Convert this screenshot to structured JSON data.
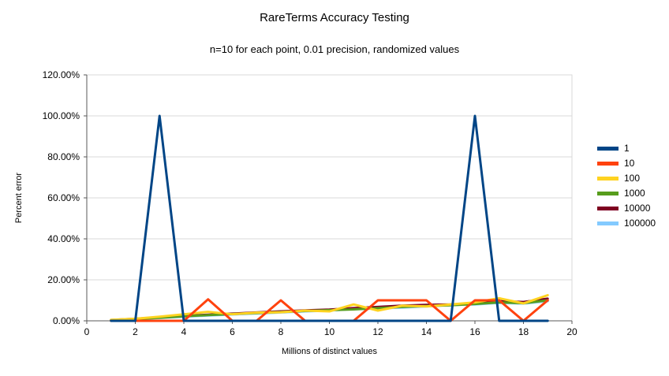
{
  "chart_data": {
    "type": "line",
    "title": "RareTerms Accuracy Testing",
    "subtitle": "n=10 for each point, 0.01 precision, randomized values",
    "xlabel": "Millions of distinct values",
    "ylabel": "Percent error",
    "xlim": [
      0,
      20
    ],
    "ylim": [
      0,
      120
    ],
    "grid": true,
    "legend_position": "right",
    "x_ticks": [
      0,
      2,
      4,
      6,
      8,
      10,
      12,
      14,
      16,
      18,
      20
    ],
    "y_tick_values": [
      0,
      20,
      40,
      60,
      80,
      100,
      120
    ],
    "y_tick_labels": [
      "0.00%",
      "20.00%",
      "40.00%",
      "60.00%",
      "80.00%",
      "100.00%",
      "120.00%"
    ],
    "x": [
      1,
      2,
      3,
      4,
      5,
      6,
      7,
      8,
      9,
      10,
      11,
      12,
      13,
      14,
      15,
      16,
      17,
      18,
      19
    ],
    "series": [
      {
        "name": "1",
        "color": "#004586",
        "values": [
          0,
          0,
          100,
          0,
          0,
          0,
          0,
          0,
          0,
          0,
          0,
          0,
          0,
          0,
          0,
          100,
          0,
          0,
          0
        ]
      },
      {
        "name": "10",
        "color": "#ff420e",
        "values": [
          0,
          0,
          0,
          0,
          10.5,
          0,
          0,
          10,
          0,
          0,
          0,
          10,
          10,
          10,
          0,
          10,
          10,
          0,
          10
        ]
      },
      {
        "name": "100",
        "color": "#ffd320",
        "values": [
          0.5,
          1,
          2,
          3.2,
          4.4,
          3.2,
          4,
          4.2,
          5,
          4.6,
          8,
          5,
          7.4,
          7,
          8,
          9,
          11,
          8.5,
          12.5
        ]
      },
      {
        "name": "1000",
        "color": "#579d1c",
        "values": [
          0.3,
          0.9,
          1.5,
          2.2,
          2.8,
          3.3,
          3.8,
          4.3,
          4.8,
          5.2,
          5.6,
          6.2,
          6.8,
          7.2,
          7.6,
          8.2,
          9,
          8.6,
          10
        ]
      },
      {
        "name": "10000",
        "color": "#7e0021",
        "values": [
          0.4,
          1,
          1.7,
          2.4,
          3,
          3.5,
          4.1,
          4.6,
          5.1,
          5.5,
          6.2,
          6.8,
          7.4,
          7.8,
          8,
          8.6,
          9.6,
          9.2,
          10.8
        ]
      },
      {
        "name": "100000",
        "color": "#83caff",
        "values": [
          0.3,
          0.8,
          1.4,
          2,
          2.6,
          3.1,
          3.6,
          4.1,
          4.6,
          5,
          5.8,
          6,
          6.5,
          7,
          7.8,
          8,
          8.8,
          8.4,
          9.6
        ]
      }
    ]
  }
}
